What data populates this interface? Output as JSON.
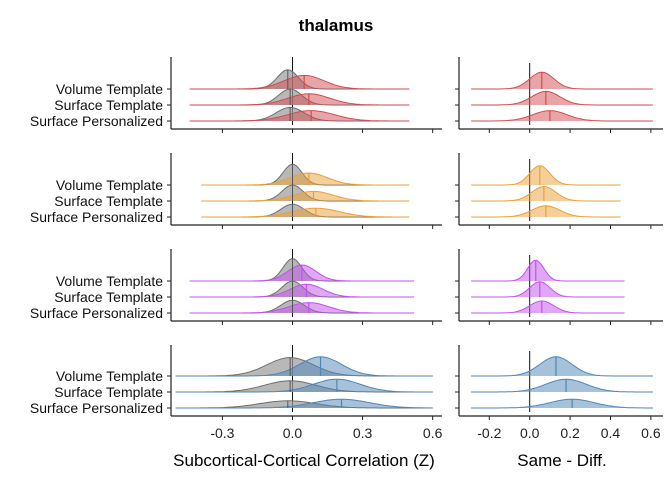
{
  "title": "thalamus",
  "colors": {
    "null_fill": "#9a9a9a",
    "null_line": "#6e6e6e",
    "red": "#d24b4f",
    "orange": "#eba035",
    "purple": "#c350f0",
    "blue": "#4d86b8",
    "axis": "#222222"
  },
  "chart_data": [
    {
      "type": "ridgeline",
      "panel": "left",
      "xlabel": "Subcortical-Cortical Correlation (Z)",
      "xlim": [
        -0.52,
        0.64
      ],
      "xticks": [
        -0.3,
        0.0,
        0.3,
        0.6
      ],
      "xtick_labels": [
        "-0.3",
        "0.0",
        "0.3",
        "0.6"
      ],
      "rows": [
        "Volume Template",
        "Surface Template",
        "Surface Personalized"
      ],
      "groups": [
        {
          "color_key": "red",
          "range": [
            -0.44,
            0.5
          ],
          "series": [
            {
              "row": "Volume Template",
              "comparison": {
                "mean": 0.05,
                "sd": 0.085,
                "height": 0.85
              },
              "null": {
                "mean": -0.02,
                "sd": 0.045,
                "height": 1.2
              },
              "comparison_median": 0.05,
              "null_median": -0.02
            },
            {
              "row": "Surface Template",
              "comparison": {
                "mean": 0.07,
                "sd": 0.09,
                "height": 0.7
              },
              "null": {
                "mean": -0.01,
                "sd": 0.05,
                "height": 1.0
              },
              "comparison_median": 0.07,
              "null_median": -0.01
            },
            {
              "row": "Surface Personalized",
              "comparison": {
                "mean": 0.08,
                "sd": 0.1,
                "height": 0.65
              },
              "null": {
                "mean": -0.01,
                "sd": 0.06,
                "height": 0.85
              },
              "comparison_median": 0.08,
              "null_median": -0.01
            }
          ]
        },
        {
          "color_key": "orange",
          "range": [
            -0.39,
            0.5
          ],
          "series": [
            {
              "row": "Volume Template",
              "comparison": {
                "mean": 0.07,
                "sd": 0.08,
                "height": 0.75
              },
              "null": {
                "mean": 0.0,
                "sd": 0.04,
                "height": 1.3
              },
              "comparison_median": 0.07,
              "null_median": 0.0
            },
            {
              "row": "Surface Template",
              "comparison": {
                "mean": 0.09,
                "sd": 0.085,
                "height": 0.6
              },
              "null": {
                "mean": 0.0,
                "sd": 0.045,
                "height": 1.0
              },
              "comparison_median": 0.09,
              "null_median": 0.0
            },
            {
              "row": "Surface Personalized",
              "comparison": {
                "mean": 0.1,
                "sd": 0.1,
                "height": 0.55
              },
              "null": {
                "mean": 0.0,
                "sd": 0.05,
                "height": 0.8
              },
              "comparison_median": 0.1,
              "null_median": 0.0
            }
          ]
        },
        {
          "color_key": "purple",
          "range": [
            -0.44,
            0.52
          ],
          "series": [
            {
              "row": "Volume Template",
              "comparison": {
                "mean": 0.04,
                "sd": 0.06,
                "height": 1.0
              },
              "null": {
                "mean": 0.0,
                "sd": 0.04,
                "height": 1.4
              },
              "comparison_median": 0.04,
              "null_median": 0.0
            },
            {
              "row": "Surface Template",
              "comparison": {
                "mean": 0.06,
                "sd": 0.07,
                "height": 0.8
              },
              "null": {
                "mean": 0.0,
                "sd": 0.045,
                "height": 1.0
              },
              "comparison_median": 0.06,
              "null_median": 0.0
            },
            {
              "row": "Surface Personalized",
              "comparison": {
                "mean": 0.07,
                "sd": 0.085,
                "height": 0.65
              },
              "null": {
                "mean": 0.0,
                "sd": 0.05,
                "height": 0.8
              },
              "comparison_median": 0.07,
              "null_median": 0.0
            }
          ]
        },
        {
          "color_key": "blue",
          "range": [
            -0.5,
            0.6
          ],
          "series": [
            {
              "row": "Volume Template",
              "comparison": {
                "mean": 0.12,
                "sd": 0.09,
                "height": 1.2
              },
              "null": {
                "mean": -0.01,
                "sd": 0.1,
                "height": 1.15
              },
              "comparison_median": 0.12,
              "null_median": -0.01
            },
            {
              "row": "Surface Template",
              "comparison": {
                "mean": 0.19,
                "sd": 0.1,
                "height": 0.8
              },
              "null": {
                "mean": -0.01,
                "sd": 0.11,
                "height": 0.7
              },
              "comparison_median": 0.19,
              "null_median": -0.01
            },
            {
              "row": "Surface Personalized",
              "comparison": {
                "mean": 0.21,
                "sd": 0.12,
                "height": 0.55
              },
              "null": {
                "mean": -0.02,
                "sd": 0.12,
                "height": 0.45
              },
              "comparison_median": 0.21,
              "null_median": -0.02
            }
          ]
        }
      ]
    },
    {
      "type": "ridgeline",
      "panel": "right",
      "xlabel": "Same - Diff.",
      "xlim": [
        -0.35,
        0.66
      ],
      "xticks": [
        -0.2,
        0.0,
        0.2,
        0.4,
        0.6
      ],
      "xtick_labels": [
        "-0.2",
        "0.0",
        "0.2",
        "0.4",
        "0.6"
      ],
      "reference_line": 0.0,
      "rows": [
        "Volume Template",
        "Surface Template",
        "Surface Personalized"
      ],
      "groups": [
        {
          "color_key": "red",
          "range": [
            -0.29,
            0.61
          ],
          "series": [
            {
              "row": "Volume Template",
              "diff": {
                "mean": 0.06,
                "sd": 0.06,
                "height": 1.05
              },
              "median": 0.06
            },
            {
              "row": "Surface Template",
              "diff": {
                "mean": 0.08,
                "sd": 0.07,
                "height": 0.85
              },
              "median": 0.08
            },
            {
              "row": "Surface Personalized",
              "diff": {
                "mean": 0.1,
                "sd": 0.085,
                "height": 0.65
              },
              "median": 0.1
            }
          ]
        },
        {
          "color_key": "orange",
          "range": [
            -0.29,
            0.45
          ],
          "series": [
            {
              "row": "Volume Template",
              "diff": {
                "mean": 0.05,
                "sd": 0.05,
                "height": 1.2
              },
              "median": 0.05
            },
            {
              "row": "Surface Template",
              "diff": {
                "mean": 0.07,
                "sd": 0.06,
                "height": 0.9
              },
              "median": 0.07
            },
            {
              "row": "Surface Personalized",
              "diff": {
                "mean": 0.08,
                "sd": 0.07,
                "height": 0.7
              },
              "median": 0.08
            }
          ]
        },
        {
          "color_key": "purple",
          "range": [
            -0.29,
            0.47
          ],
          "series": [
            {
              "row": "Volume Template",
              "diff": {
                "mean": 0.03,
                "sd": 0.04,
                "height": 1.3
              },
              "median": 0.03
            },
            {
              "row": "Surface Template",
              "diff": {
                "mean": 0.05,
                "sd": 0.05,
                "height": 0.95
              },
              "median": 0.05
            },
            {
              "row": "Surface Personalized",
              "diff": {
                "mean": 0.06,
                "sd": 0.06,
                "height": 0.75
              },
              "median": 0.06
            }
          ]
        },
        {
          "color_key": "blue",
          "range": [
            -0.29,
            0.61
          ],
          "series": [
            {
              "row": "Volume Template",
              "diff": {
                "mean": 0.13,
                "sd": 0.08,
                "height": 1.2
              },
              "median": 0.13
            },
            {
              "row": "Surface Template",
              "diff": {
                "mean": 0.18,
                "sd": 0.1,
                "height": 0.8
              },
              "median": 0.18
            },
            {
              "row": "Surface Personalized",
              "diff": {
                "mean": 0.21,
                "sd": 0.11,
                "height": 0.55
              },
              "median": 0.21
            }
          ]
        }
      ]
    }
  ]
}
